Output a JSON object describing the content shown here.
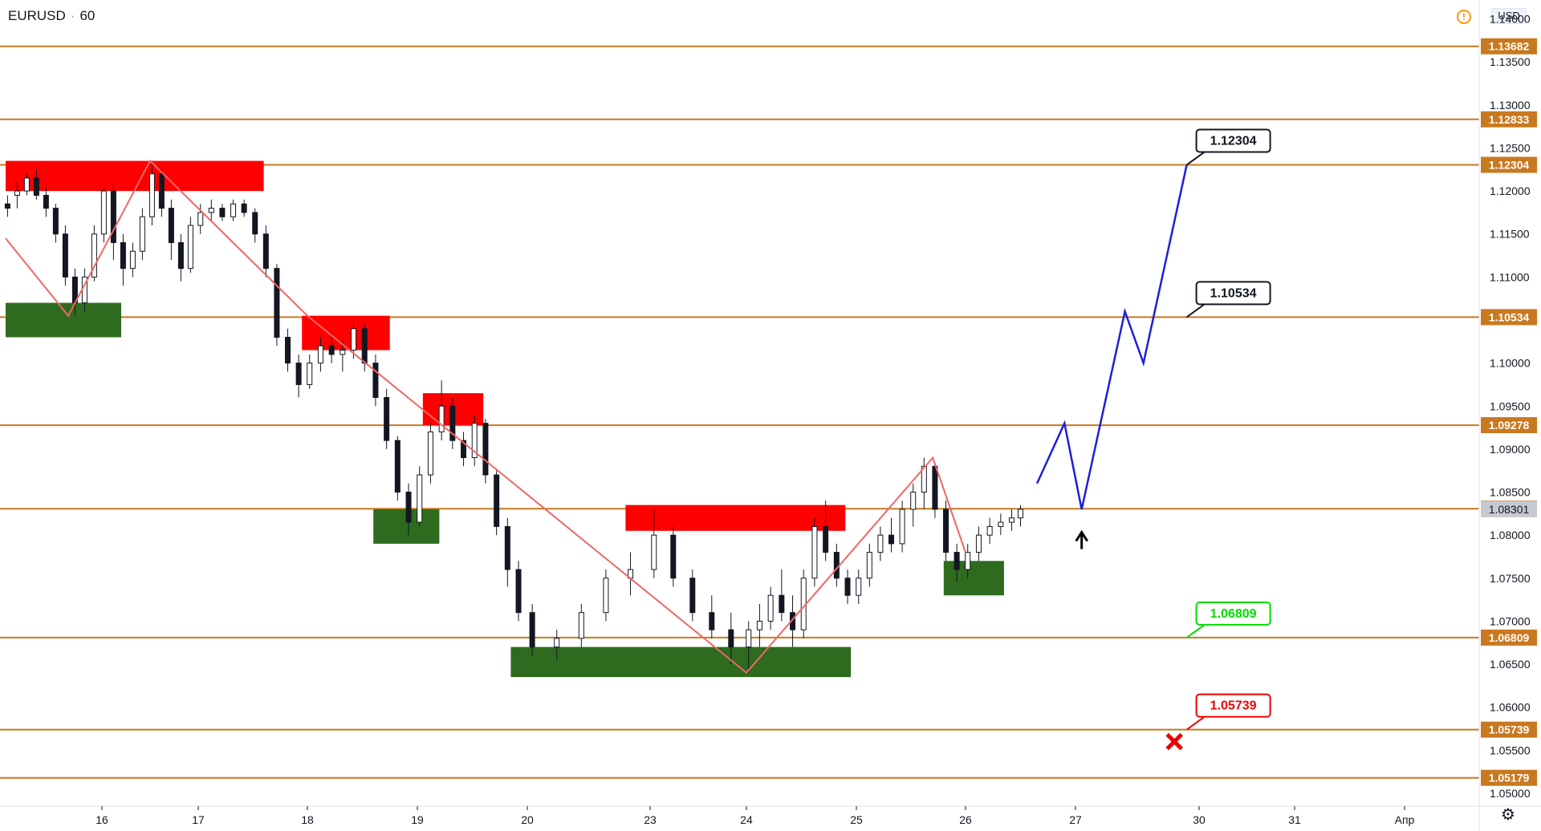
{
  "header": {
    "symbol": "EURUSD",
    "interval": "60"
  },
  "price_scale": {
    "currency": "USD",
    "alert_icon": "warning-icon",
    "settings_icon": "gear-icon"
  },
  "chart_data": {
    "type": "candlestick",
    "x_labels": [
      "16",
      "17",
      "18",
      "19",
      "20",
      "23",
      "24",
      "25",
      "26",
      "27",
      "30",
      "31",
      "Апр"
    ],
    "y_ticks": [
      "1.14000",
      "1.13500",
      "1.13000",
      "1.12500",
      "1.12000",
      "1.11500",
      "1.11000",
      "1.10500",
      "1.10000",
      "1.09500",
      "1.09000",
      "1.08500",
      "1.08000",
      "1.07500",
      "1.07000",
      "1.06500",
      "1.06000",
      "1.05500",
      "1.05000"
    ],
    "ylim": [
      1.0485,
      1.1422
    ],
    "horizontal_levels": [
      1.13682,
      1.12833,
      1.12304,
      1.10534,
      1.09278,
      1.08307,
      1.06809,
      1.05739,
      1.05179
    ],
    "level_labels": [
      "1.13682",
      "1.12833",
      "1.12304",
      "1.10534",
      "1.09278",
      "1.08307",
      "1.06809",
      "1.05739",
      "1.05179"
    ],
    "last_price": 1.08301,
    "last_price_label": "1.08301",
    "colors": {
      "level_line": "#c8791f",
      "level_label_bg": "#c8791f",
      "zigzag": "#f06666",
      "projection": "#1f1fd6",
      "supply_zone": "#ff0000",
      "demand_zone": "#2e6b1e",
      "candle": "#131722",
      "target_green": "#00dd00",
      "stop_red": "#ee0000"
    },
    "supply_zones": [
      {
        "x1": 15.0,
        "x2": 17.6,
        "y1": 1.12,
        "y2": 1.1235
      },
      {
        "x1": 17.95,
        "x2": 18.75,
        "y1": 1.1015,
        "y2": 1.1055
      },
      {
        "x1": 19.05,
        "x2": 19.6,
        "y1": 1.09278,
        "y2": 1.0965
      },
      {
        "x1": 20.4,
        "x2": 21.9,
        "y1": 1.0805,
        "y2": 1.0835
      }
    ],
    "demand_zones": [
      {
        "x1": 15.0,
        "x2": 16.2,
        "y1": 1.103,
        "y2": 1.107
      },
      {
        "x1": 18.6,
        "x2": 19.2,
        "y1": 1.079,
        "y2": 1.083
      },
      {
        "x1": 19.85,
        "x2": 21.95,
        "y1": 1.0635,
        "y2": 1.067
      },
      {
        "x1": 22.8,
        "x2": 23.35,
        "y1": 1.073,
        "y2": 1.077
      }
    ],
    "zigzag": [
      {
        "x": 15.0,
        "y": 1.1145
      },
      {
        "x": 15.65,
        "y": 1.1055
      },
      {
        "x": 16.5,
        "y": 1.1235
      },
      {
        "x": 18.0,
        "y": 1.1055
      },
      {
        "x": 21.0,
        "y": 1.064
      },
      {
        "x": 22.7,
        "y": 1.089
      },
      {
        "x": 23.0,
        "y": 1.078
      }
    ],
    "projection": [
      {
        "x": 23.65,
        "y": 1.086
      },
      {
        "x": 23.9,
        "y": 1.093
      },
      {
        "x": 24.05,
        "y": 1.083
      },
      {
        "x": 24.4,
        "y": 1.106
      },
      {
        "x": 24.55,
        "y": 1.1
      },
      {
        "x": 24.9,
        "y": 1.12304
      }
    ],
    "callouts": [
      {
        "text": "1.12304",
        "x": 24.9,
        "y": 1.12304,
        "style": "black"
      },
      {
        "text": "1.10534",
        "x": 24.9,
        "y": 1.10534,
        "style": "black"
      },
      {
        "text": "1.06809",
        "x": 24.9,
        "y": 1.06809,
        "style": "green"
      },
      {
        "text": "1.05739",
        "x": 24.9,
        "y": 1.05739,
        "style": "red"
      }
    ],
    "arrow_up": {
      "x": 24.05,
      "y": 1.0795
    },
    "stop_mark": {
      "x": 24.8,
      "y": 1.056
    },
    "candles": [
      [
        15.02,
        1.1185,
        1.1195,
        1.117,
        1.118
      ],
      [
        15.12,
        1.1195,
        1.121,
        1.118,
        1.12
      ],
      [
        15.22,
        1.12,
        1.122,
        1.1195,
        1.1215
      ],
      [
        15.32,
        1.1215,
        1.1225,
        1.119,
        1.1195
      ],
      [
        15.42,
        1.1195,
        1.1205,
        1.117,
        1.118
      ],
      [
        15.52,
        1.118,
        1.1185,
        1.114,
        1.115
      ],
      [
        15.62,
        1.115,
        1.116,
        1.109,
        1.11
      ],
      [
        15.72,
        1.11,
        1.111,
        1.1055,
        1.107
      ],
      [
        15.82,
        1.107,
        1.111,
        1.106,
        1.11
      ],
      [
        15.92,
        1.11,
        1.116,
        1.1095,
        1.115
      ],
      [
        16.02,
        1.115,
        1.1205,
        1.114,
        1.12
      ],
      [
        16.12,
        1.12,
        1.121,
        1.112,
        1.114
      ],
      [
        16.22,
        1.114,
        1.115,
        1.109,
        1.111
      ],
      [
        16.32,
        1.111,
        1.114,
        1.11,
        1.113
      ],
      [
        16.42,
        1.113,
        1.118,
        1.112,
        1.117
      ],
      [
        16.52,
        1.117,
        1.1235,
        1.116,
        1.122
      ],
      [
        16.62,
        1.122,
        1.1225,
        1.117,
        1.118
      ],
      [
        16.72,
        1.118,
        1.119,
        1.112,
        1.114
      ],
      [
        16.82,
        1.114,
        1.115,
        1.1095,
        1.111
      ],
      [
        16.92,
        1.111,
        1.117,
        1.1105,
        1.116
      ],
      [
        17.02,
        1.116,
        1.1185,
        1.115,
        1.1175
      ],
      [
        17.12,
        1.1175,
        1.119,
        1.1165,
        1.118
      ],
      [
        17.22,
        1.118,
        1.1185,
        1.1165,
        1.117
      ],
      [
        17.32,
        1.117,
        1.119,
        1.1165,
        1.1185
      ],
      [
        17.42,
        1.1185,
        1.119,
        1.117,
        1.1175
      ],
      [
        17.52,
        1.1175,
        1.118,
        1.114,
        1.115
      ],
      [
        17.62,
        1.115,
        1.116,
        1.11,
        1.111
      ],
      [
        17.72,
        1.111,
        1.1115,
        1.102,
        1.103
      ],
      [
        17.82,
        1.103,
        1.104,
        1.099,
        1.1
      ],
      [
        17.92,
        1.1,
        1.101,
        1.096,
        1.0975
      ],
      [
        18.02,
        1.0975,
        1.101,
        1.097,
        1.1
      ],
      [
        18.12,
        1.1,
        1.103,
        1.099,
        1.102
      ],
      [
        18.22,
        1.102,
        1.1035,
        1.1,
        1.101
      ],
      [
        18.32,
        1.101,
        1.1025,
        1.099,
        1.1015
      ],
      [
        18.42,
        1.1015,
        1.105,
        1.1005,
        1.104
      ],
      [
        18.52,
        1.104,
        1.1045,
        1.099,
        1.1
      ],
      [
        18.62,
        1.1,
        1.101,
        1.095,
        1.096
      ],
      [
        18.72,
        1.096,
        1.097,
        1.09,
        1.091
      ],
      [
        18.82,
        1.091,
        1.0915,
        1.084,
        1.085
      ],
      [
        18.92,
        1.085,
        1.086,
        1.08,
        1.0815
      ],
      [
        19.02,
        1.0815,
        1.088,
        1.081,
        1.087
      ],
      [
        19.12,
        1.087,
        1.093,
        1.086,
        1.092
      ],
      [
        19.22,
        1.092,
        1.098,
        1.091,
        1.095
      ],
      [
        19.32,
        1.095,
        1.096,
        1.09,
        1.091
      ],
      [
        19.42,
        1.091,
        1.092,
        1.088,
        1.089
      ],
      [
        19.52,
        1.089,
        1.094,
        1.088,
        1.093
      ],
      [
        19.62,
        1.093,
        1.0935,
        1.086,
        1.087
      ],
      [
        19.72,
        1.087,
        1.0875,
        1.08,
        1.081
      ],
      [
        19.82,
        1.081,
        1.082,
        1.074,
        1.076
      ],
      [
        19.92,
        1.076,
        1.077,
        1.07,
        1.071
      ],
      [
        20.02,
        1.071,
        1.072,
        1.066,
        1.067
      ],
      [
        20.12,
        1.067,
        1.069,
        1.0655,
        1.068
      ],
      [
        20.22,
        1.068,
        1.072,
        1.067,
        1.071
      ],
      [
        20.32,
        1.071,
        1.076,
        1.07,
        1.075
      ],
      [
        20.42,
        1.075,
        1.078,
        1.073,
        1.076
      ],
      [
        20.52,
        1.076,
        1.083,
        1.075,
        1.08
      ],
      [
        20.62,
        1.08,
        1.081,
        1.074,
        1.075
      ],
      [
        20.72,
        1.075,
        1.076,
        1.07,
        1.071
      ],
      [
        20.82,
        1.071,
        1.073,
        1.068,
        1.069
      ],
      [
        20.92,
        1.069,
        1.071,
        1.065,
        1.067
      ],
      [
        21.02,
        1.067,
        1.07,
        1.064,
        1.069
      ],
      [
        21.12,
        1.069,
        1.072,
        1.067,
        1.07
      ],
      [
        21.22,
        1.07,
        1.074,
        1.069,
        1.073
      ],
      [
        21.32,
        1.073,
        1.076,
        1.07,
        1.071
      ],
      [
        21.42,
        1.071,
        1.073,
        1.067,
        1.069
      ],
      [
        21.52,
        1.069,
        1.076,
        1.068,
        1.075
      ],
      [
        21.62,
        1.075,
        1.082,
        1.074,
        1.081
      ],
      [
        21.72,
        1.081,
        1.084,
        1.077,
        1.078
      ],
      [
        21.82,
        1.078,
        1.079,
        1.074,
        1.075
      ],
      [
        21.92,
        1.075,
        1.076,
        1.072,
        1.073
      ],
      [
        22.02,
        1.073,
        1.076,
        1.072,
        1.075
      ],
      [
        22.12,
        1.075,
        1.079,
        1.074,
        1.078
      ],
      [
        22.22,
        1.078,
        1.081,
        1.077,
        1.08
      ],
      [
        22.32,
        1.08,
        1.082,
        1.078,
        1.079
      ],
      [
        22.42,
        1.079,
        1.084,
        1.078,
        1.083
      ],
      [
        22.52,
        1.083,
        1.086,
        1.081,
        1.085
      ],
      [
        22.62,
        1.085,
        1.089,
        1.083,
        1.088
      ],
      [
        22.72,
        1.088,
        1.0885,
        1.082,
        1.083
      ],
      [
        22.82,
        1.083,
        1.084,
        1.077,
        1.078
      ],
      [
        22.92,
        1.078,
        1.079,
        1.0745,
        1.076
      ],
      [
        23.02,
        1.076,
        1.079,
        1.075,
        1.078
      ],
      [
        23.12,
        1.078,
        1.081,
        1.077,
        1.08
      ],
      [
        23.22,
        1.08,
        1.082,
        1.079,
        1.081
      ],
      [
        23.32,
        1.081,
        1.0825,
        1.08,
        1.0815
      ],
      [
        23.42,
        1.0815,
        1.083,
        1.0805,
        1.082
      ],
      [
        23.5,
        1.082,
        1.0835,
        1.081,
        1.083
      ]
    ]
  }
}
